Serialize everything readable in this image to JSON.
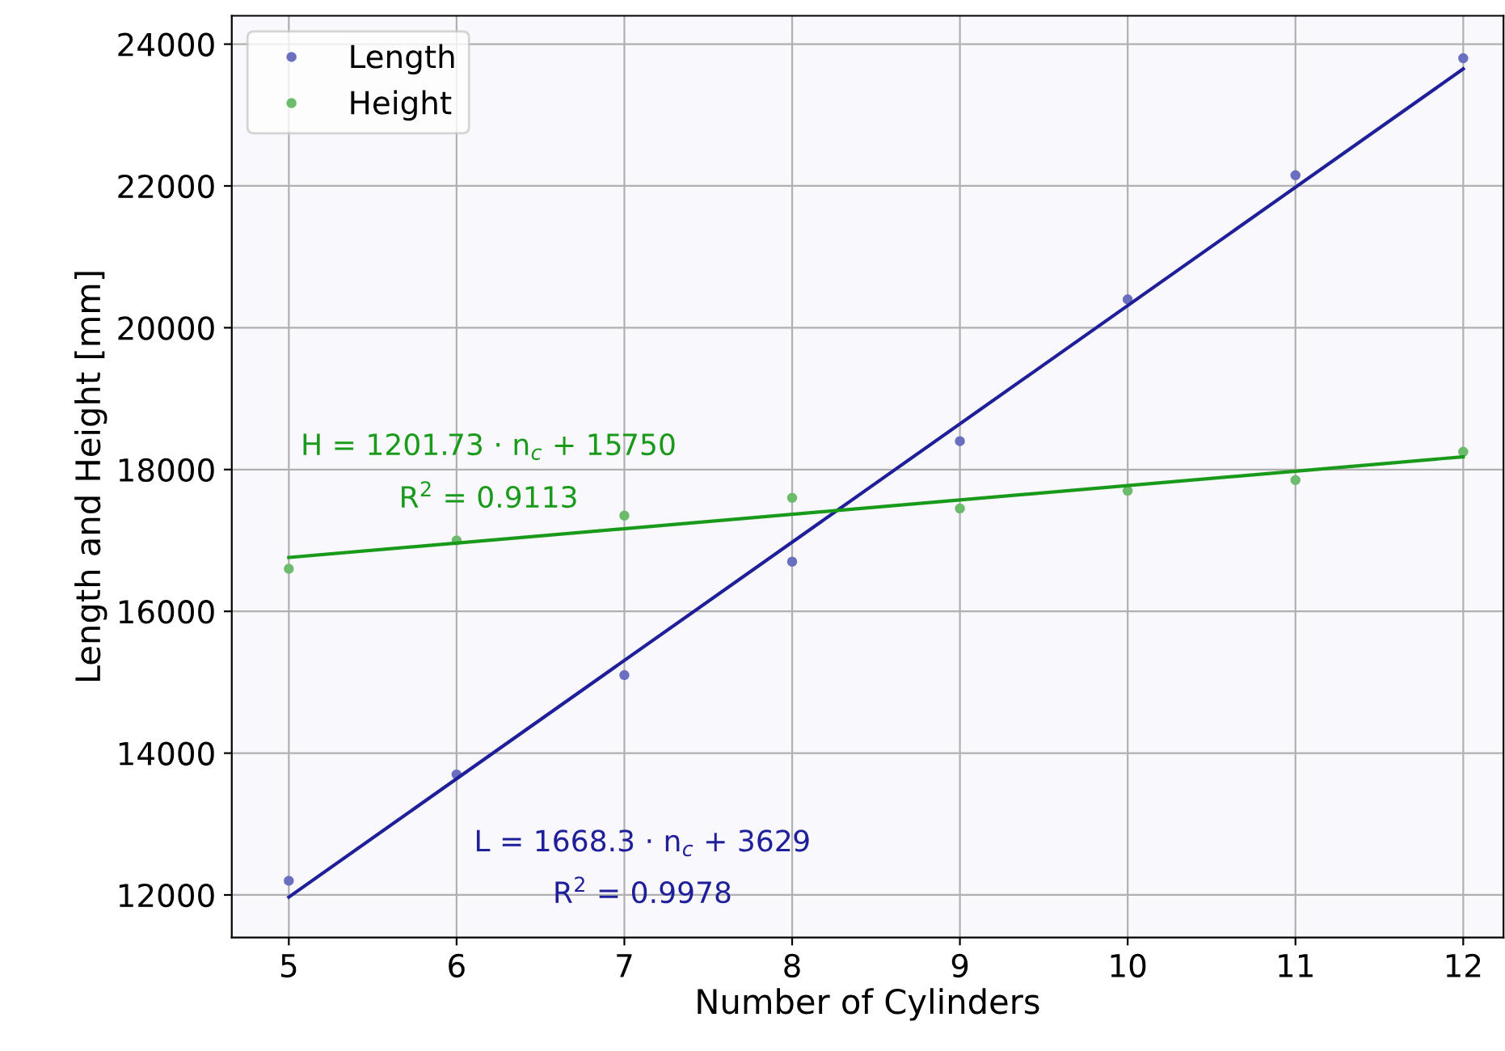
{
  "chart_data": {
    "type": "scatter",
    "xlabel": "Number of Cylinders",
    "ylabel": "Length and Height [mm]",
    "xlim": [
      4.66,
      12.24
    ],
    "xticks": [
      5,
      6,
      7,
      8,
      9,
      10,
      11,
      12
    ],
    "ylim": [
      11400,
      24400
    ],
    "yticks": [
      12000,
      14000,
      16000,
      18000,
      20000,
      22000,
      24000
    ],
    "grid": true,
    "legend": "top left",
    "marker": "circle",
    "series": [
      {
        "name": "Length",
        "color": "#6b6fbf",
        "x": [
          5,
          6,
          7,
          8,
          9,
          10,
          11,
          12
        ],
        "values": [
          12200,
          13700,
          15100,
          16700,
          18400,
          20400,
          22150,
          23800
        ]
      },
      {
        "name": "Height",
        "color": "#6dbb6d",
        "x": [
          5,
          6,
          7,
          8,
          9,
          10,
          11,
          12
        ],
        "values": [
          16600,
          17000,
          17350,
          17600,
          17450,
          17700,
          17850,
          18250
        ]
      },
      {
        "type": "line",
        "marker": "none",
        "color": "#1f1f9a",
        "x": [
          5,
          12
        ],
        "values": [
          11970,
          23650
        ]
      },
      {
        "type": "line",
        "marker": "none",
        "color": "#1a9a1a",
        "x": [
          5,
          12
        ],
        "values": [
          16760,
          18180
        ]
      }
    ],
    "annotations": [
      "H = 1201.73 · n$_{c}$ + 15750",
      "R$^{2}$ = 0.9113",
      "L = 1668.3 · n$_{c}$ + 3629",
      "R$^{2}$ = 0.9978"
    ]
  }
}
